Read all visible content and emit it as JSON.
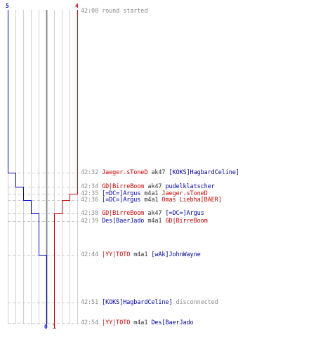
{
  "chart_data": {
    "type": "line",
    "series": [
      {
        "color": "#0000cc",
        "values": [
          5,
          4,
          3,
          2,
          1,
          0
        ]
      },
      {
        "color": "#cc0000",
        "values": [
          4,
          3,
          2,
          1
        ]
      }
    ],
    "ticks": {
      "blue_start": "5",
      "red_start": "4",
      "blue_end": "0",
      "red_end": "1"
    }
  },
  "events": [
    {
      "time": "42:08",
      "segments": [
        {
          "text": "round started",
          "style": "plain"
        }
      ]
    },
    {
      "time": "42:32",
      "segments": [
        {
          "text": "Jaeger.sToneD",
          "style": "red"
        },
        {
          "text": " ak47 ",
          "style": "weapon"
        },
        {
          "text": "[KOKS]HagbardCeline]",
          "style": "blue"
        }
      ]
    },
    {
      "time": "42:34",
      "segments": [
        {
          "text": "GD|BirreBoom",
          "style": "red"
        },
        {
          "text": " ak47 ",
          "style": "weapon"
        },
        {
          "text": "pudelklatscher",
          "style": "blue"
        }
      ]
    },
    {
      "time": "42:35",
      "segments": [
        {
          "text": "[=DC=]Argus",
          "style": "blue"
        },
        {
          "text": " m4a1 ",
          "style": "weapon"
        },
        {
          "text": "Jaeger.sToneD",
          "style": "red"
        }
      ]
    },
    {
      "time": "42:36",
      "segments": [
        {
          "text": "[=DC=]Argus",
          "style": "blue"
        },
        {
          "text": " m4a1 ",
          "style": "weapon"
        },
        {
          "text": "Omas Liebha[BAER]",
          "style": "red"
        }
      ]
    },
    {
      "time": "42:38",
      "segments": [
        {
          "text": "GD|BirreBoom",
          "style": "red"
        },
        {
          "text": " ak47 ",
          "style": "weapon"
        },
        {
          "text": "[=DC=]Argus",
          "style": "blue"
        }
      ]
    },
    {
      "time": "42:39",
      "segments": [
        {
          "text": "Des[BaerJado",
          "style": "blue"
        },
        {
          "text": " m4a1 ",
          "style": "weapon"
        },
        {
          "text": "GD|BirreBoom",
          "style": "red"
        }
      ]
    },
    {
      "time": "42:44",
      "segments": [
        {
          "text": "|YY|TOTO",
          "style": "red"
        },
        {
          "text": " m4a1 ",
          "style": "weapon"
        },
        {
          "text": "[wAk]JohnWayne",
          "style": "blue"
        }
      ]
    },
    {
      "time": "42:51",
      "segments": [
        {
          "text": "[KOKS]HagbardCeline]",
          "style": "blue"
        },
        {
          "text": " disconnected",
          "style": "plain"
        }
      ]
    },
    {
      "time": "42:54",
      "segments": [
        {
          "text": "|YY|TOTO",
          "style": "red"
        },
        {
          "text": " m4a1 ",
          "style": "weapon"
        },
        {
          "text": "Des[BaerJado",
          "style": "blue"
        }
      ]
    }
  ]
}
